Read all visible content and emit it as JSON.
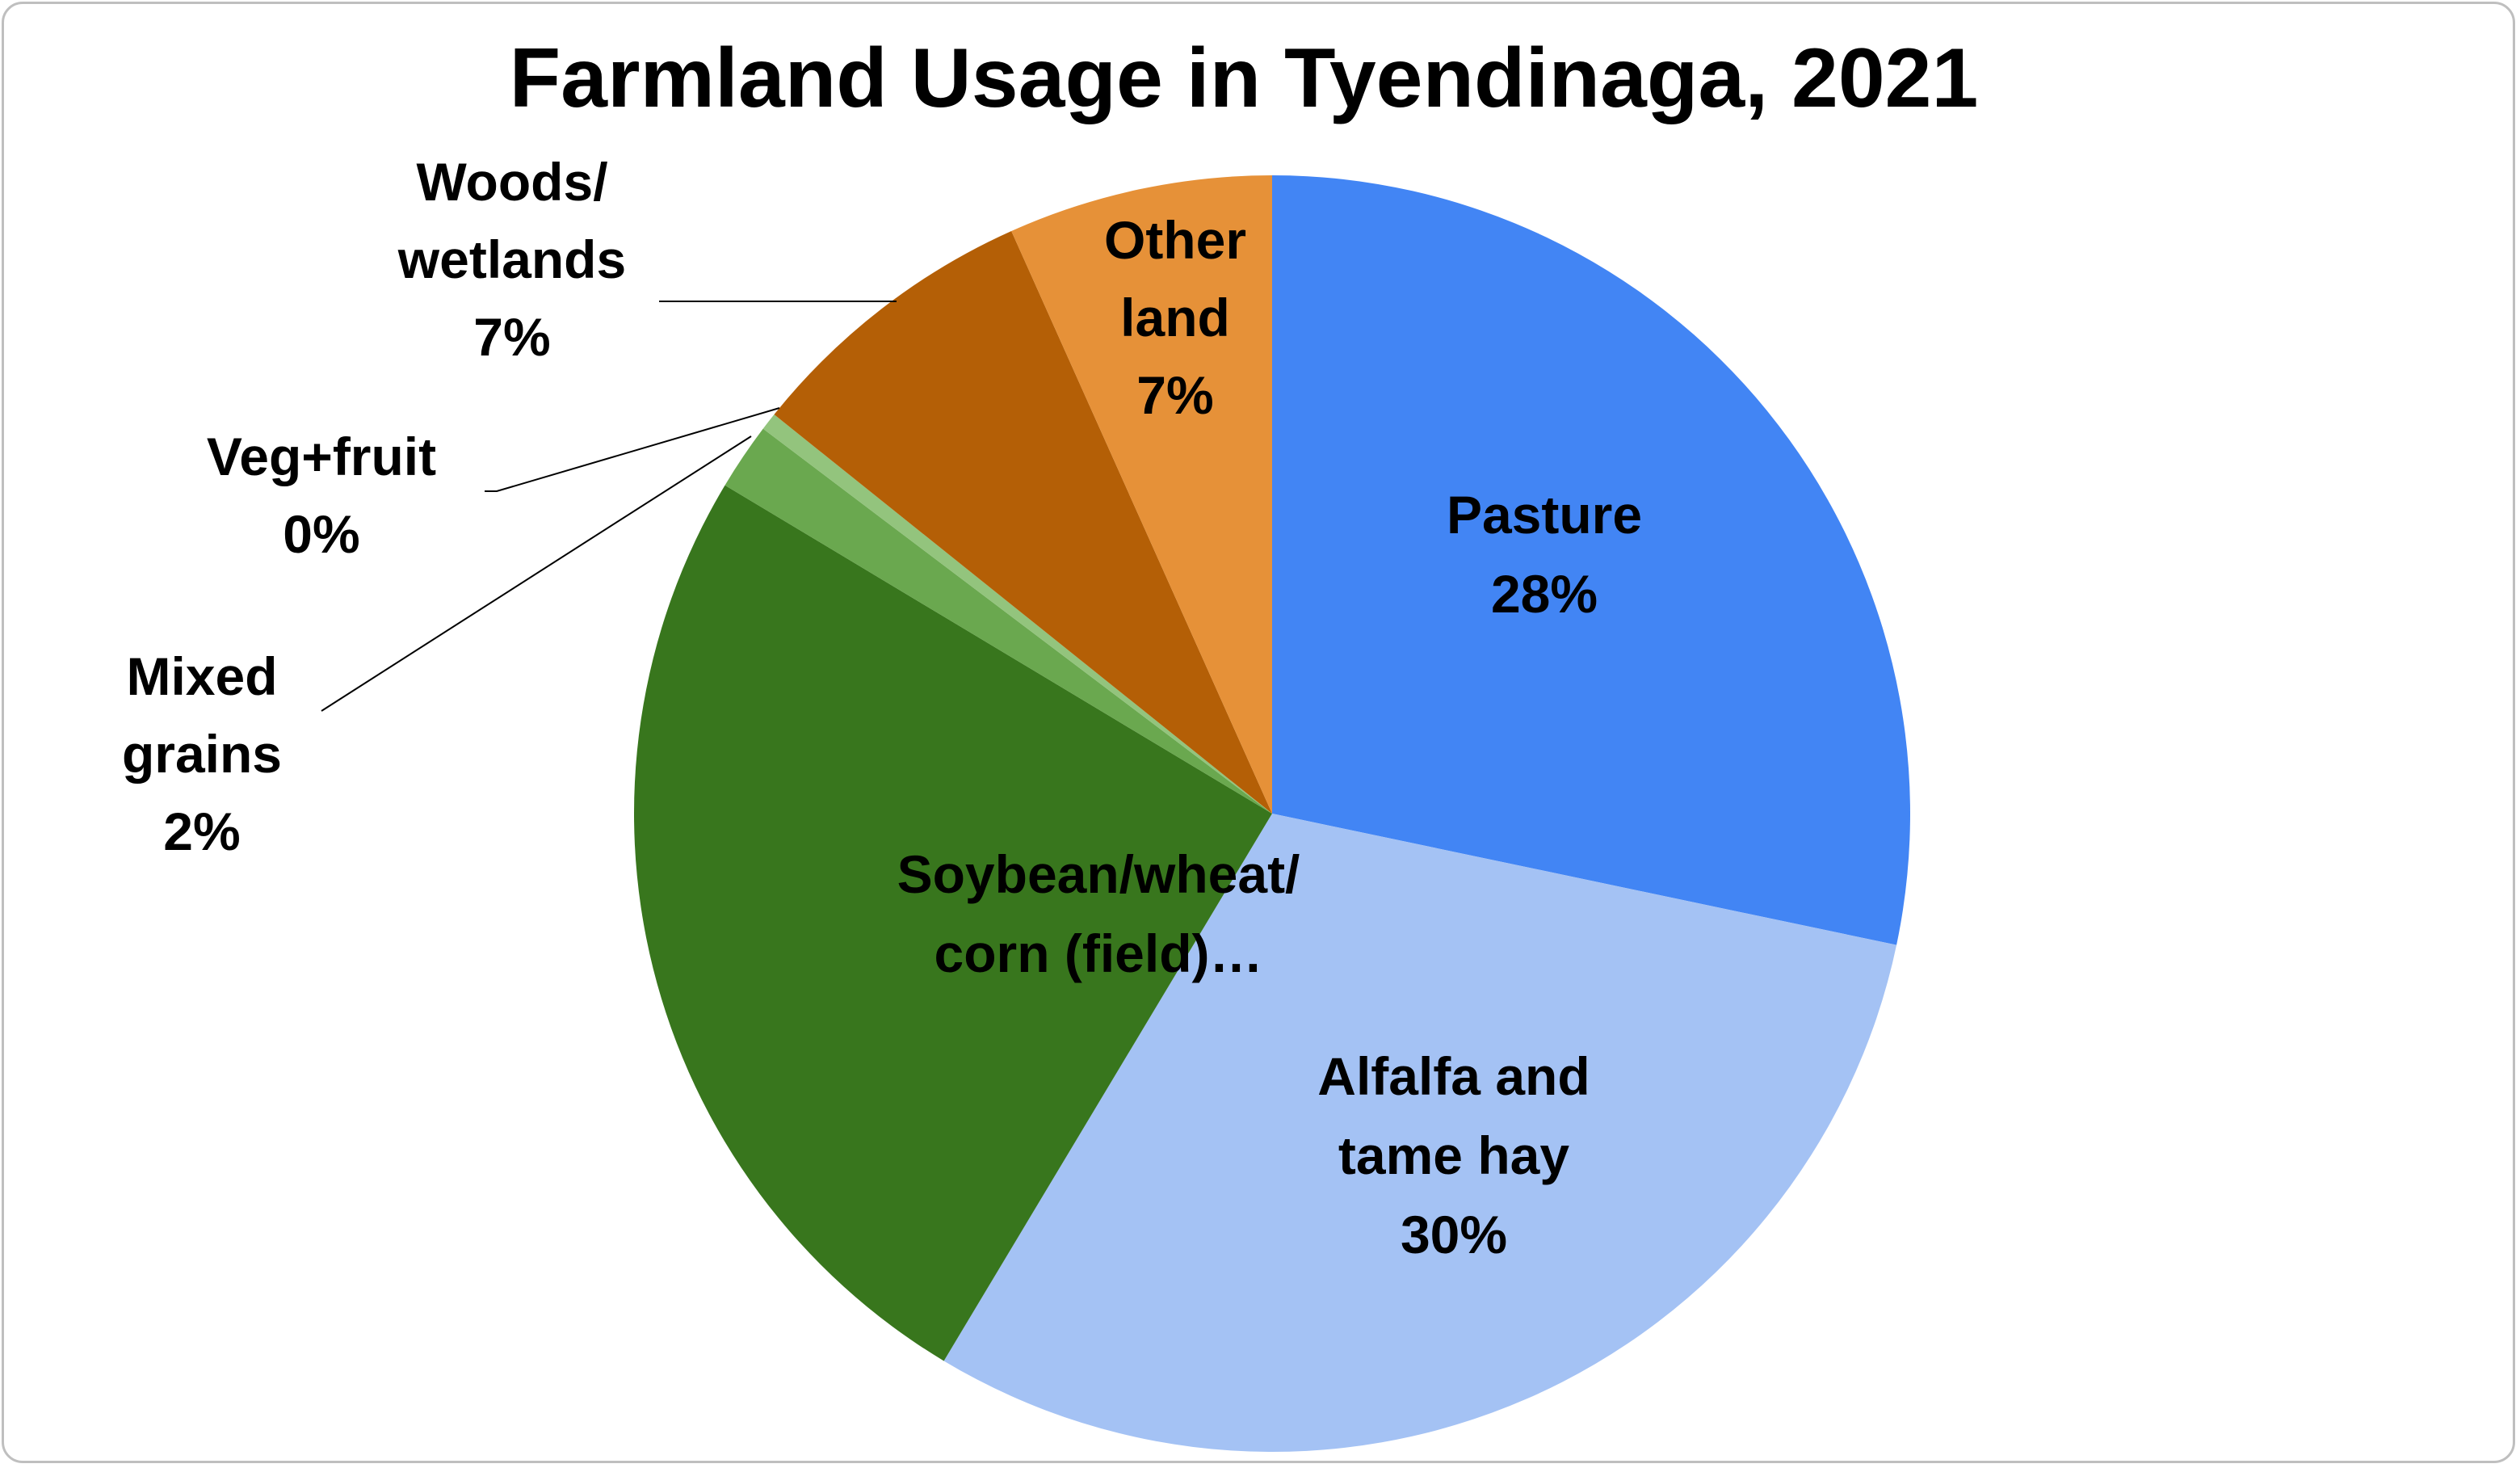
{
  "chart_data": {
    "type": "pie",
    "title": "Farmland Usage in Tyendinaga, 2021",
    "start_angle_deg": 0,
    "direction": "clockwise",
    "slices": [
      {
        "label_lines": [
          "Pasture"
        ],
        "pct_label": "28%",
        "value": 28.3,
        "color": "#4285f4"
      },
      {
        "label_lines": [
          "Alfalfa and",
          "tame hay"
        ],
        "pct_label": "30%",
        "value": 30.3,
        "color": "#a4c2f4"
      },
      {
        "label_lines": [
          "Soybean/wheat/",
          "corn (field)…"
        ],
        "pct_label": "",
        "value": 25.0,
        "color": "#38761d"
      },
      {
        "label_lines": [
          "Mixed",
          "grains"
        ],
        "pct_label": "2%",
        "value": 1.7,
        "color": "#6aa84f"
      },
      {
        "label_lines": [
          "Veg+fruit"
        ],
        "pct_label": "0%",
        "value": 0.45,
        "color": "#93c47d"
      },
      {
        "label_lines": [
          "Woods/",
          "wetlands"
        ],
        "pct_label": "7%",
        "value": 7.55,
        "color": "#b45f06"
      },
      {
        "label_lines": [
          "Other",
          "land"
        ],
        "pct_label": "7%",
        "value": 6.7,
        "color": "#e69138"
      }
    ]
  }
}
